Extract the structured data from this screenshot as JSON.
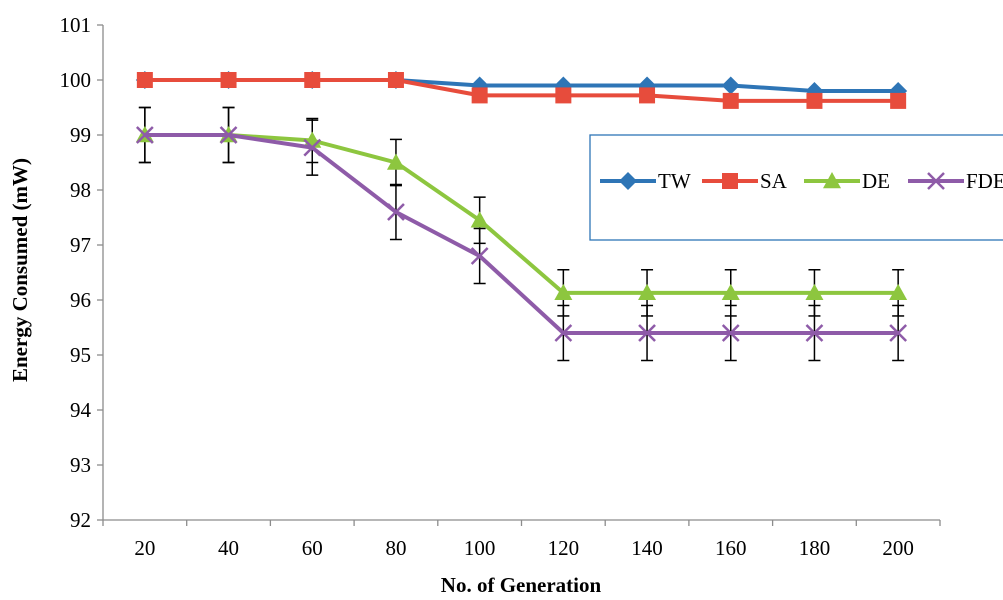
{
  "chart_data": {
    "type": "line",
    "title": "",
    "xlabel": "No. of Generation",
    "ylabel": "Energy Consumed (mW)",
    "x": [
      20,
      40,
      60,
      80,
      100,
      120,
      140,
      160,
      180,
      200
    ],
    "x_tick_labels": [
      "20",
      "40",
      "60",
      "80",
      "100",
      "120",
      "140",
      "160",
      "180",
      "200"
    ],
    "ylim": [
      92,
      101
    ],
    "y_ticks": [
      92,
      93,
      94,
      95,
      96,
      97,
      98,
      99,
      100,
      101
    ],
    "y_tick_labels": [
      "92",
      "93",
      "94",
      "95",
      "96",
      "97",
      "98",
      "99",
      "100",
      "101"
    ],
    "grid": false,
    "legend_position": "right",
    "series": [
      {
        "name": "TW",
        "color": "#2E75B6",
        "marker": "diamond",
        "values": [
          100,
          100,
          100,
          100,
          99.9,
          99.9,
          99.9,
          99.9,
          99.8,
          99.8
        ]
      },
      {
        "name": "SA",
        "color": "#E74C3C",
        "marker": "square",
        "values": [
          100,
          100,
          100,
          100,
          99.72,
          99.72,
          99.72,
          99.62,
          99.62,
          99.62
        ]
      },
      {
        "name": "DE",
        "color": "#8DC63F",
        "marker": "triangle",
        "values": [
          99,
          99,
          98.9,
          98.5,
          97.45,
          96.13,
          96.13,
          96.13,
          96.13,
          96.13
        ],
        "error": [
          0.5,
          0.5,
          0.4,
          0.42,
          0.42,
          0.42,
          0.42,
          0.42,
          0.42,
          0.42
        ]
      },
      {
        "name": "FDE",
        "color": "#8E5BA8",
        "marker": "x",
        "values": [
          99,
          99,
          98.77,
          97.6,
          96.8,
          95.4,
          95.4,
          95.4,
          95.4,
          95.4
        ],
        "error": [
          0.5,
          0.5,
          0.5,
          0.5,
          0.5,
          0.5,
          0.5,
          0.5,
          0.5,
          0.5
        ]
      }
    ]
  }
}
